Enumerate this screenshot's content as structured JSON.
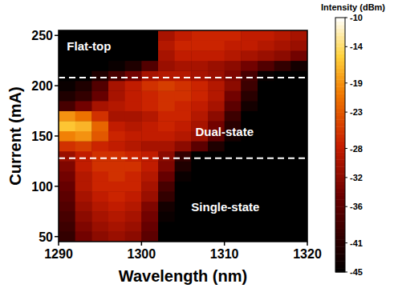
{
  "chart_data": {
    "type": "heatmap",
    "x_label": "Wavelength (nm)",
    "y_label": "Current (mA)",
    "xlim": [
      1290,
      1320
    ],
    "ylim": [
      45,
      255
    ],
    "xticks": [
      1290,
      1300,
      1310,
      1320
    ],
    "yticks": [
      50,
      100,
      150,
      200,
      250
    ],
    "x": [
      1291,
      1293,
      1295,
      1297,
      1299,
      1301,
      1303,
      1305,
      1307,
      1309,
      1311,
      1313,
      1315,
      1317,
      1319
    ],
    "y": [
      50,
      60,
      70,
      80,
      90,
      100,
      110,
      120,
      130,
      140,
      150,
      160,
      170,
      180,
      190,
      200,
      210,
      220,
      230,
      240,
      250
    ],
    "cells": [
      [
        -40,
        -34,
        -32,
        -31,
        -32,
        -36,
        -45,
        -45,
        -45,
        -45,
        -45,
        -45,
        -45,
        -45,
        -45
      ],
      [
        -39,
        -33,
        -31,
        -30,
        -31,
        -35,
        -45,
        -45,
        -45,
        -45,
        -45,
        -45,
        -45,
        -45,
        -45
      ],
      [
        -38,
        -32,
        -30,
        -29,
        -30,
        -34,
        -44,
        -45,
        -45,
        -45,
        -45,
        -45,
        -45,
        -45,
        -45
      ],
      [
        -37,
        -31,
        -29,
        -28,
        -29,
        -33,
        -43,
        -45,
        -45,
        -45,
        -45,
        -45,
        -45,
        -45,
        -45
      ],
      [
        -36,
        -30,
        -28,
        -27,
        -28,
        -31,
        -40,
        -45,
        -45,
        -45,
        -45,
        -45,
        -45,
        -45,
        -45
      ],
      [
        -35,
        -29,
        -27,
        -27,
        -27,
        -30,
        -38,
        -45,
        -45,
        -45,
        -45,
        -45,
        -45,
        -45,
        -45
      ],
      [
        -34,
        -29,
        -27,
        -26,
        -27,
        -29,
        -35,
        -44,
        -45,
        -45,
        -45,
        -45,
        -45,
        -45,
        -45
      ],
      [
        -33,
        -28,
        -26,
        -26,
        -26,
        -28,
        -33,
        -42,
        -45,
        -45,
        -45,
        -45,
        -45,
        -45,
        -45
      ],
      [
        -31,
        -28,
        -26,
        -26,
        -27,
        -28,
        -32,
        -40,
        -45,
        -45,
        -45,
        -45,
        -45,
        -45,
        -45
      ],
      [
        -26,
        -25,
        -27,
        -28,
        -29,
        -30,
        -30,
        -32,
        -36,
        -42,
        -45,
        -45,
        -45,
        -45,
        -45
      ],
      [
        -20,
        -19,
        -23,
        -27,
        -28,
        -28,
        -28,
        -29,
        -31,
        -36,
        -43,
        -45,
        -45,
        -45,
        -45
      ],
      [
        -16,
        -17,
        -22,
        -28,
        -29,
        -28,
        -27,
        -28,
        -30,
        -34,
        -41,
        -45,
        -45,
        -45,
        -45
      ],
      [
        -19,
        -21,
        -26,
        -30,
        -30,
        -29,
        -27,
        -27,
        -29,
        -32,
        -39,
        -45,
        -45,
        -45,
        -45
      ],
      [
        -38,
        -34,
        -30,
        -29,
        -28,
        -27,
        -26,
        -27,
        -28,
        -30,
        -36,
        -43,
        -45,
        -45,
        -45
      ],
      [
        -42,
        -40,
        -35,
        -30,
        -28,
        -27,
        -26,
        -26,
        -27,
        -29,
        -34,
        -41,
        -45,
        -45,
        -45
      ],
      [
        -44,
        -42,
        -37,
        -30,
        -28,
        -26,
        -25,
        -26,
        -27,
        -29,
        -32,
        -39,
        -45,
        -45,
        -45
      ],
      [
        -45,
        -45,
        -42,
        -38,
        -34,
        -30,
        -29,
        -29,
        -30,
        -31,
        -33,
        -38,
        -44,
        -45,
        -45
      ],
      [
        -45,
        -45,
        -45,
        -44,
        -42,
        -37,
        -31,
        -30,
        -30,
        -31,
        -32,
        -34,
        -37,
        -40,
        -43
      ],
      [
        -45,
        -45,
        -45,
        -45,
        -45,
        -45,
        -30,
        -28,
        -28,
        -28,
        -29,
        -30,
        -31,
        -32,
        -34
      ],
      [
        -45,
        -45,
        -45,
        -45,
        -45,
        -45,
        -29,
        -27,
        -27,
        -27,
        -28,
        -28,
        -29,
        -30,
        -31
      ],
      [
        -45,
        -45,
        -45,
        -45,
        -45,
        -45,
        -30,
        -28,
        -27,
        -27,
        -27,
        -28,
        -28,
        -29,
        -30
      ]
    ],
    "colorbar_label": "Intensity (dBm)",
    "colorbar_lim": [
      -45,
      -10
    ],
    "colorbar_ticks": [
      -10,
      -14,
      -19,
      -23,
      -28,
      -32,
      -36,
      -41,
      -45
    ],
    "hlines": [
      128,
      208
    ],
    "annotations": [
      {
        "text": "Flat-top",
        "x": 1291,
        "y": 235
      },
      {
        "text": "Dual-state",
        "x": 1306.5,
        "y": 150
      },
      {
        "text": "Single-state",
        "x": 1306,
        "y": 75
      }
    ]
  }
}
